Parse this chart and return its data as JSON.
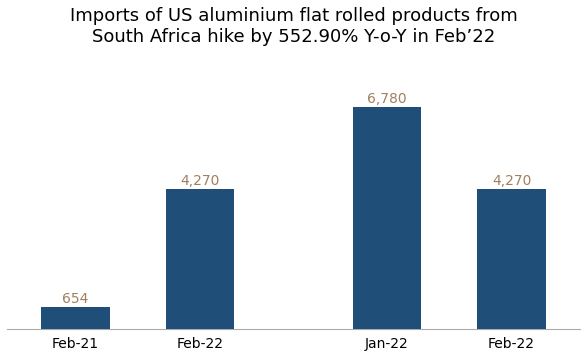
{
  "title": "Imports of US aluminium flat rolled products from\nSouth Africa hike by 552.90% Y-o-Y in Feb’22",
  "categories": [
    "Feb-21",
    "Feb-22",
    "Jan-22",
    "Feb-22"
  ],
  "values": [
    654,
    4270,
    6780,
    4270
  ],
  "bar_color": "#1F4E79",
  "label_color": "#A08060",
  "title_fontsize": 13,
  "title_fontweight": "normal",
  "label_fontsize": 10,
  "tick_fontsize": 10,
  "bar_width": 0.55,
  "background_color": "#ffffff",
  "value_labels": [
    "654",
    "4,270",
    "6,780",
    "4,270"
  ],
  "x_positions": [
    0,
    1,
    2.5,
    3.5
  ],
  "xlim": [
    -0.55,
    4.05
  ],
  "ylim_factor": 1.22,
  "bottom_spine_color": "#AAAAAA"
}
